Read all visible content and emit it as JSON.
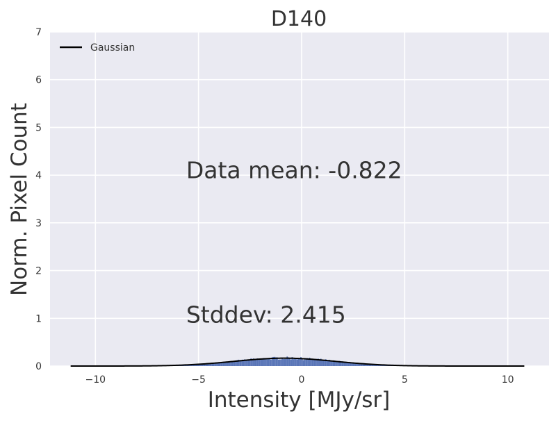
{
  "chart_data": {
    "type": "histogram",
    "title": "D140",
    "xlabel": "Intensity [MJy/sr]",
    "ylabel": "Norm. Pixel Count",
    "xlim": [
      -12.2,
      12.0
    ],
    "ylim": [
      0,
      7
    ],
    "xticks": [
      -10,
      -5,
      0,
      5,
      10
    ],
    "xtick_labels": [
      "−10",
      "−5",
      "0",
      "5",
      "10"
    ],
    "yticks": [
      0,
      1,
      2,
      3,
      4,
      5,
      6,
      7
    ],
    "ytick_labels": [
      "0",
      "1",
      "2",
      "3",
      "4",
      "5",
      "6",
      "7"
    ],
    "grid": true,
    "legend": {
      "placement": "top-left",
      "entries": [
        {
          "name": "Gaussian",
          "color": "#000000"
        }
      ]
    },
    "gaussian": {
      "mean": -0.822,
      "stddev": 2.415,
      "x_range": [
        -11.2,
        10.8
      ]
    },
    "histogram": {
      "color": "#5975b7",
      "x_range": [
        -7.5,
        5.8
      ]
    },
    "annotations": [
      {
        "text": "Data mean: -0.822",
        "x": -5.6,
        "y": 4.1
      },
      {
        "text": "Stddev: 2.415",
        "x": -5.6,
        "y": 1.07
      }
    ],
    "colors": {
      "background": "#eaeaf2",
      "grid": "#ffffff",
      "text": "#333333"
    }
  }
}
